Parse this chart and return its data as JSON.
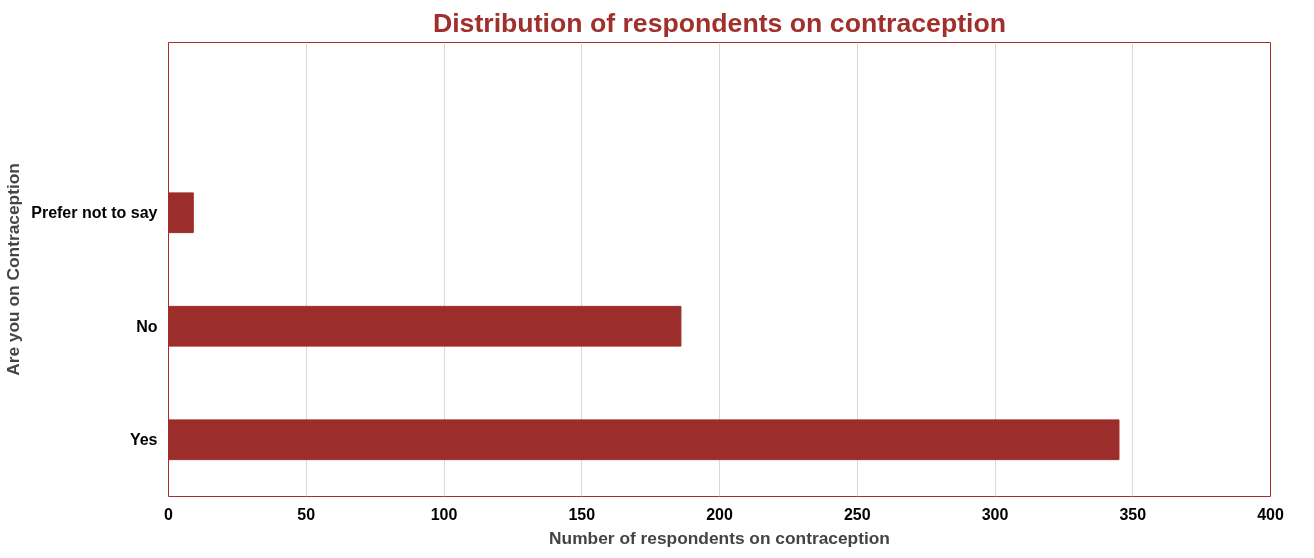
{
  "chart_data": {
    "type": "bar",
    "orientation": "horizontal",
    "title": "Distribution of respondents on contraception",
    "xlabel": "Number of respondents on contraception",
    "ylabel": "Are you on Contraception",
    "categories": [
      null,
      "Prefer not to say",
      "No",
      "Yes"
    ],
    "values": [
      null,
      9,
      186,
      345
    ],
    "color": "#9b2d2a",
    "xlim": [
      0,
      400
    ],
    "xticks": [
      0,
      50,
      100,
      150,
      200,
      250,
      300,
      350,
      400
    ],
    "grid": "x"
  }
}
